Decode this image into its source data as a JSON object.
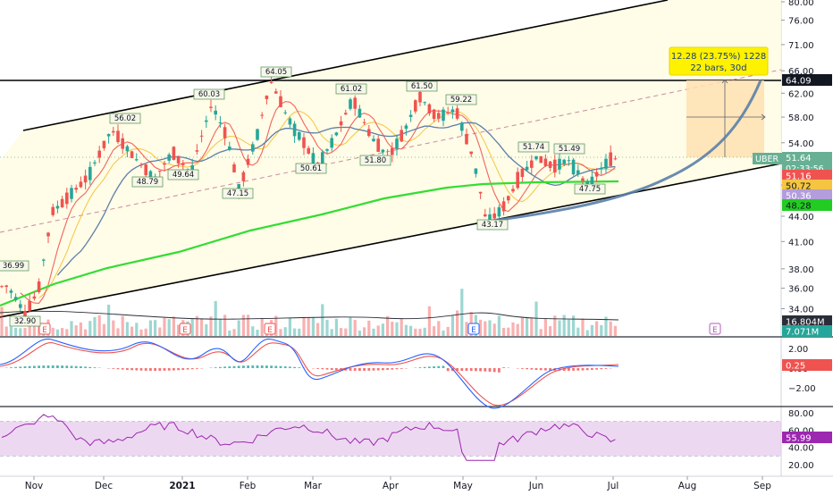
{
  "colors": {
    "up": "#26a69a",
    "down": "#ef5350",
    "channel": "#000000",
    "ma200": "#33dd33",
    "ma_short": "#ef5350",
    "ma_mid": "#5b7fa8",
    "ma_fast": "#f5c542",
    "projection": "#5a7fa8",
    "rsi_line": "#9c27b0",
    "rsi_band": "#e1bee7",
    "tag_current": "#67b094",
    "tag_ma50": "#ef5350",
    "tag_ma200": "#22cc22",
    "tag_ma20": "#f5c542",
    "tag_ma_mid": "#b39ddb",
    "tag_macd": "#ef5350",
    "tag_rsi": "#9c27b0",
    "tag_vol": "#2a2e39",
    "tag_vol_avg": "#26a69a",
    "range_box": "#ffe0b2",
    "channel_fill": "#fffbe3"
  },
  "chart_data": [
    {
      "type": "candlestick",
      "title": "",
      "y_axis_ticks": [
        "80.00",
        "76.00",
        "71.00",
        "66.00",
        "62.00",
        "58.00",
        "54.00",
        "51.00",
        "48.00",
        "44.00",
        "41.00",
        "38.00",
        "36.00",
        "34.00"
      ],
      "y_log_scale": true,
      "ylim": [
        32.5,
        80
      ],
      "x_axis_labels": [
        "Nov",
        "Dec",
        "2021",
        "Feb",
        "Mar",
        "Apr",
        "May",
        "Jun",
        "Jul",
        "Aug",
        "Sep"
      ],
      "ohlc_anchor_closes": [
        [
          "Oct 20",
          36.2
        ],
        [
          "Oct 28",
          33.5
        ],
        [
          "Nov 3",
          35.8
        ],
        [
          "Nov 9",
          44.5
        ],
        [
          "Nov 16",
          46.5
        ],
        [
          "Nov 24",
          49.0
        ],
        [
          "Dec 1",
          53.5
        ],
        [
          "Dec 4",
          56.02
        ],
        [
          "Dec 14",
          51.5
        ],
        [
          "Dec 21",
          48.79
        ],
        [
          "Dec 28",
          52.5
        ],
        [
          "Jan 5",
          49.64
        ],
        [
          "Jan 12",
          57.0
        ],
        [
          "Jan 15",
          60.03
        ],
        [
          "Jan 22",
          55.0
        ],
        [
          "Jan 28",
          47.15
        ],
        [
          "Feb 5",
          55.0
        ],
        [
          "Feb 11",
          64.05
        ],
        [
          "Feb 18",
          58.0
        ],
        [
          "Feb 25",
          54.0
        ],
        [
          "Mar 3",
          50.61
        ],
        [
          "Mar 10",
          55.0
        ],
        [
          "Mar 17",
          61.02
        ],
        [
          "Mar 24",
          55.0
        ],
        [
          "Mar 31",
          51.8
        ],
        [
          "Apr 7",
          56.0
        ],
        [
          "Apr 13",
          61.5
        ],
        [
          "Apr 20",
          58.0
        ],
        [
          "Apr 28",
          59.22
        ],
        [
          "May 5",
          52.0
        ],
        [
          "May 11",
          43.17
        ],
        [
          "May 18",
          45.0
        ],
        [
          "May 26",
          49.5
        ],
        [
          "Jun 1",
          51.74
        ],
        [
          "Jun 8",
          50.5
        ],
        [
          "Jun 14",
          51.49
        ],
        [
          "Jun 21",
          47.75
        ],
        [
          "Jun 28",
          51.0
        ],
        [
          "Jul 1",
          51.64
        ]
      ],
      "high_low_labels": [
        "56.02",
        "48.79",
        "49.64",
        "60.03",
        "47.15",
        "64.05",
        "50.61",
        "61.02",
        "51.80",
        "61.50",
        "59.22",
        "43.17",
        "51.74",
        "51.49",
        "47.75",
        "36.99",
        "32.90"
      ],
      "price_tags": [
        {
          "label": "64.09",
          "kind": "horizontal-line"
        },
        {
          "label": "UBER",
          "kind": "symbol"
        },
        {
          "label": "51.64",
          "kind": "last-price"
        },
        {
          "label": "02:33:56",
          "kind": "countdown"
        },
        {
          "label": "51.16",
          "kind": "ma"
        },
        {
          "label": "50.72",
          "kind": "ma"
        },
        {
          "label": "50.36",
          "kind": "ma"
        },
        {
          "label": "48.28",
          "kind": "ma200"
        }
      ],
      "measurement_box": {
        "line1": "12.28 (23.75%) 1228",
        "line2": "22 bars, 30d"
      },
      "earnings_markers": [
        "E",
        "E",
        "E",
        "E"
      ],
      "overlays": [
        "upward channel",
        "horizontal resistance 64.09",
        "200-period MA",
        "50-period MA",
        "20-period MA"
      ]
    },
    {
      "type": "bar",
      "title": "Volume",
      "tags": [
        "16.804M",
        "7.071M"
      ]
    },
    {
      "type": "line",
      "title": "MACD",
      "y_axis_ticks": [
        "2.00",
        "0.00",
        "−2.00"
      ],
      "tag": "0.25"
    },
    {
      "type": "line",
      "title": "RSI",
      "y_axis_ticks": [
        "80.00",
        "60.00",
        "40.00",
        "20.00"
      ],
      "band": [
        30,
        70
      ],
      "tag": "55.99"
    }
  ]
}
